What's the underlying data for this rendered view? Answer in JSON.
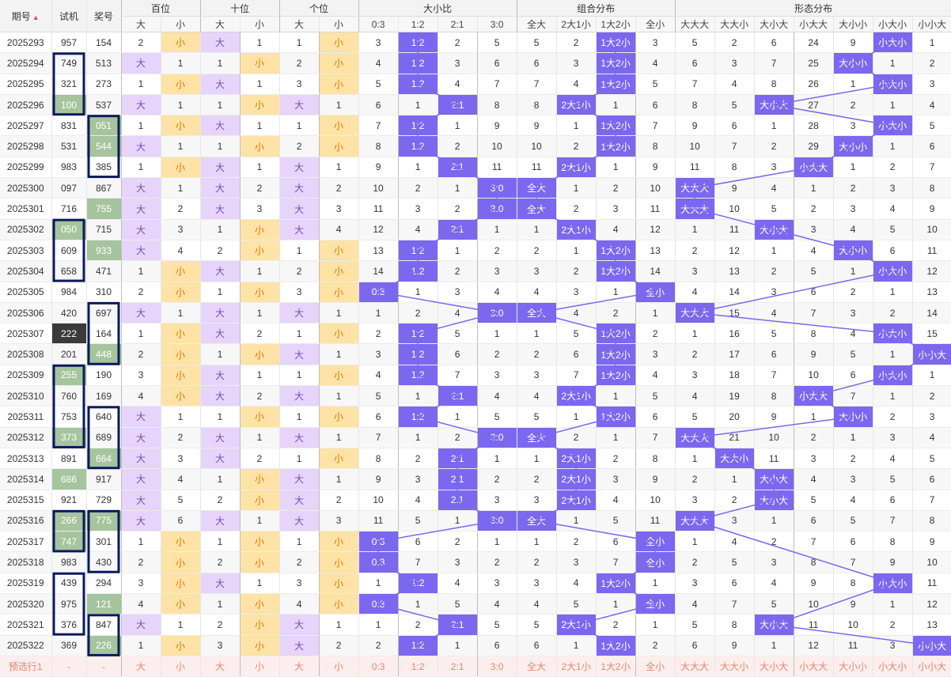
{
  "header": {
    "issue_label": "期号",
    "sort_icon": "sort-icon",
    "sj_label": "试机",
    "jh_label": "奖号",
    "groups": [
      {
        "label": "百位",
        "cols": [
          "大",
          "小"
        ]
      },
      {
        "label": "十位",
        "cols": [
          "大",
          "小"
        ]
      },
      {
        "label": "个位",
        "cols": [
          "大",
          "小"
        ]
      },
      {
        "label": "大小比",
        "cols": [
          "0:3",
          "1:2",
          "2:1",
          "3:0"
        ]
      },
      {
        "label": "组合分布",
        "cols": [
          "全大",
          "2大1小",
          "1大2小",
          "全小"
        ]
      },
      {
        "label": "形态分布",
        "cols": [
          "大大大",
          "大大小",
          "大小大",
          "小大大",
          "大小小",
          "小大小",
          "小小大"
        ]
      }
    ]
  },
  "rows": [
    {
      "issue": "2025293",
      "sj": "957",
      "jh": "154",
      "d": [
        "2",
        "小",
        "大",
        "1",
        "1",
        "小",
        "3",
        "1:2",
        "2",
        "5",
        "5",
        "2",
        "1大2小",
        "3",
        "5",
        "2",
        "6",
        "24",
        "9",
        "小大小",
        "1"
      ]
    },
    {
      "issue": "2025294",
      "sj": "749",
      "jh": "513",
      "d": [
        "大",
        "1",
        "1",
        "小",
        "2",
        "小",
        "4",
        "1:2",
        "3",
        "6",
        "6",
        "3",
        "1大2小",
        "4",
        "6",
        "3",
        "7",
        "25",
        "大小小",
        "1",
        "2"
      ]
    },
    {
      "issue": "2025295",
      "sj": "321",
      "jh": "273",
      "d": [
        "1",
        "小",
        "大",
        "1",
        "3",
        "小",
        "5",
        "1:2",
        "4",
        "7",
        "7",
        "4",
        "1大2小",
        "5",
        "7",
        "4",
        "8",
        "26",
        "1",
        "小大小",
        "3"
      ]
    },
    {
      "issue": "2025296",
      "sj": "100",
      "jh": "537",
      "d": [
        "大",
        "1",
        "1",
        "小",
        "大",
        "1",
        "6",
        "1",
        "2:1",
        "8",
        "8",
        "2大1小",
        "1",
        "6",
        "8",
        "5",
        "大小大",
        "27",
        "2",
        "1",
        "4"
      ]
    },
    {
      "issue": "2025297",
      "sj": "831",
      "jh": "051",
      "d": [
        "1",
        "小",
        "大",
        "1",
        "1",
        "小",
        "7",
        "1:2",
        "1",
        "9",
        "9",
        "1",
        "1大2小",
        "7",
        "9",
        "6",
        "1",
        "28",
        "3",
        "小大小",
        "5"
      ]
    },
    {
      "issue": "2025298",
      "sj": "531",
      "jh": "544",
      "d": [
        "大",
        "1",
        "1",
        "小",
        "2",
        "小",
        "8",
        "1:2",
        "2",
        "10",
        "10",
        "2",
        "1大2小",
        "8",
        "10",
        "7",
        "2",
        "29",
        "大小小",
        "1",
        "6"
      ]
    },
    {
      "issue": "2025299",
      "sj": "983",
      "jh": "385",
      "d": [
        "1",
        "小",
        "大",
        "1",
        "大",
        "1",
        "9",
        "1",
        "2:1",
        "11",
        "11",
        "2大1小",
        "1",
        "9",
        "11",
        "8",
        "3",
        "小大大",
        "1",
        "2",
        "7"
      ]
    },
    {
      "issue": "2025300",
      "sj": "097",
      "jh": "867",
      "d": [
        "大",
        "1",
        "大",
        "2",
        "大",
        "2",
        "10",
        "2",
        "1",
        "3:0",
        "全大",
        "1",
        "2",
        "10",
        "大大大",
        "9",
        "4",
        "1",
        "2",
        "3",
        "8"
      ]
    },
    {
      "issue": "2025301",
      "sj": "716",
      "jh": "755",
      "d": [
        "大",
        "2",
        "大",
        "3",
        "大",
        "3",
        "11",
        "3",
        "2",
        "3:0",
        "全大",
        "2",
        "3",
        "11",
        "大大大",
        "10",
        "5",
        "2",
        "3",
        "4",
        "9"
      ]
    },
    {
      "issue": "2025302",
      "sj": "050",
      "jh": "715",
      "d": [
        "大",
        "3",
        "1",
        "小",
        "大",
        "4",
        "12",
        "4",
        "2:1",
        "1",
        "1",
        "2大1小",
        "4",
        "12",
        "1",
        "11",
        "大小大",
        "3",
        "4",
        "5",
        "10"
      ]
    },
    {
      "issue": "2025303",
      "sj": "609",
      "jh": "933",
      "d": [
        "大",
        "4",
        "2",
        "小",
        "1",
        "小",
        "13",
        "1:2",
        "1",
        "2",
        "2",
        "1",
        "1大2小",
        "13",
        "2",
        "12",
        "1",
        "4",
        "大小小",
        "6",
        "11"
      ]
    },
    {
      "issue": "2025304",
      "sj": "658",
      "jh": "471",
      "d": [
        "1",
        "小",
        "大",
        "1",
        "2",
        "小",
        "14",
        "1:2",
        "2",
        "3",
        "3",
        "2",
        "1大2小",
        "14",
        "3",
        "13",
        "2",
        "5",
        "1",
        "小大小",
        "12"
      ]
    },
    {
      "issue": "2025305",
      "sj": "984",
      "jh": "310",
      "d": [
        "2",
        "小",
        "1",
        "小",
        "3",
        "小",
        "0:3",
        "1",
        "3",
        "4",
        "4",
        "3",
        "1",
        "全小",
        "4",
        "14",
        "3",
        "6",
        "2",
        "1",
        "13"
      ]
    },
    {
      "issue": "2025306",
      "sj": "420",
      "jh": "697",
      "d": [
        "大",
        "1",
        "大",
        "1",
        "大",
        "1",
        "1",
        "2",
        "4",
        "3:0",
        "全大",
        "4",
        "2",
        "1",
        "大大大",
        "15",
        "4",
        "7",
        "3",
        "2",
        "14"
      ]
    },
    {
      "issue": "2025307",
      "sj": "222",
      "jh": "164",
      "d": [
        "1",
        "小",
        "大",
        "2",
        "1",
        "小",
        "2",
        "1:2",
        "5",
        "1",
        "1",
        "5",
        "1大2小",
        "2",
        "1",
        "16",
        "5",
        "8",
        "4",
        "小大小",
        "15"
      ]
    },
    {
      "issue": "2025308",
      "sj": "201",
      "jh": "448",
      "d": [
        "2",
        "小",
        "1",
        "小",
        "大",
        "1",
        "3",
        "1:2",
        "6",
        "2",
        "2",
        "6",
        "1大2小",
        "3",
        "2",
        "17",
        "6",
        "9",
        "5",
        "1",
        "小小大"
      ]
    },
    {
      "issue": "2025309",
      "sj": "255",
      "jh": "190",
      "d": [
        "3",
        "小",
        "大",
        "1",
        "1",
        "小",
        "4",
        "1:2",
        "7",
        "3",
        "3",
        "7",
        "1大2小",
        "4",
        "3",
        "18",
        "7",
        "10",
        "6",
        "小大小",
        "1"
      ]
    },
    {
      "issue": "2025310",
      "sj": "760",
      "jh": "169",
      "d": [
        "4",
        "小",
        "大",
        "2",
        "大",
        "1",
        "5",
        "1",
        "2:1",
        "4",
        "4",
        "2大1小",
        "1",
        "5",
        "4",
        "19",
        "8",
        "小大大",
        "7",
        "1",
        "2"
      ]
    },
    {
      "issue": "2025311",
      "sj": "753",
      "jh": "640",
      "d": [
        "大",
        "1",
        "1",
        "小",
        "1",
        "小",
        "6",
        "1:2",
        "1",
        "5",
        "5",
        "1",
        "1大2小",
        "6",
        "5",
        "20",
        "9",
        "1",
        "大小小",
        "2",
        "3"
      ]
    },
    {
      "issue": "2025312",
      "sj": "373",
      "jh": "689",
      "d": [
        "大",
        "2",
        "大",
        "1",
        "大",
        "1",
        "7",
        "1",
        "2",
        "3:0",
        "全大",
        "2",
        "1",
        "7",
        "大大大",
        "21",
        "10",
        "2",
        "1",
        "3",
        "4"
      ]
    },
    {
      "issue": "2025313",
      "sj": "891",
      "jh": "664",
      "d": [
        "大",
        "3",
        "大",
        "2",
        "1",
        "小",
        "8",
        "2",
        "2:1",
        "1",
        "1",
        "2大1小",
        "2",
        "8",
        "1",
        "大大小",
        "11",
        "3",
        "2",
        "4",
        "5"
      ]
    },
    {
      "issue": "2025314",
      "sj": "686",
      "jh": "917",
      "d": [
        "大",
        "4",
        "1",
        "小",
        "大",
        "1",
        "9",
        "3",
        "2:1",
        "2",
        "2",
        "2大1小",
        "3",
        "9",
        "2",
        "1",
        "大小大",
        "4",
        "3",
        "5",
        "6"
      ]
    },
    {
      "issue": "2025315",
      "sj": "921",
      "jh": "729",
      "d": [
        "大",
        "5",
        "2",
        "小",
        "大",
        "2",
        "10",
        "4",
        "2:1",
        "3",
        "3",
        "2大1小",
        "4",
        "10",
        "3",
        "2",
        "大小大",
        "5",
        "4",
        "6",
        "7"
      ]
    },
    {
      "issue": "2025316",
      "sj": "266",
      "jh": "775",
      "d": [
        "大",
        "6",
        "大",
        "1",
        "大",
        "3",
        "11",
        "5",
        "1",
        "3:0",
        "全大",
        "1",
        "5",
        "11",
        "大大大",
        "3",
        "1",
        "6",
        "5",
        "7",
        "8"
      ]
    },
    {
      "issue": "2025317",
      "sj": "747",
      "jh": "301",
      "d": [
        "1",
        "小",
        "1",
        "小",
        "1",
        "小",
        "0:3",
        "6",
        "2",
        "1",
        "1",
        "2",
        "6",
        "全小",
        "1",
        "4",
        "2",
        "7",
        "6",
        "8",
        "9"
      ]
    },
    {
      "issue": "2025318",
      "sj": "983",
      "jh": "430",
      "d": [
        "2",
        "小",
        "2",
        "小",
        "2",
        "小",
        "0:3",
        "7",
        "3",
        "2",
        "2",
        "3",
        "7",
        "全小",
        "2",
        "5",
        "3",
        "8",
        "7",
        "9",
        "10"
      ]
    },
    {
      "issue": "2025319",
      "sj": "439",
      "jh": "294",
      "d": [
        "3",
        "小",
        "大",
        "1",
        "3",
        "小",
        "1",
        "1:2",
        "4",
        "3",
        "3",
        "4",
        "1大2小",
        "1",
        "3",
        "6",
        "4",
        "9",
        "8",
        "小大小",
        "11"
      ]
    },
    {
      "issue": "2025320",
      "sj": "975",
      "jh": "121",
      "d": [
        "4",
        "小",
        "1",
        "小",
        "4",
        "小",
        "0:3",
        "1",
        "5",
        "4",
        "4",
        "5",
        "1",
        "全小",
        "4",
        "7",
        "5",
        "10",
        "9",
        "1",
        "12"
      ]
    },
    {
      "issue": "2025321",
      "sj": "376",
      "jh": "847",
      "d": [
        "大",
        "1",
        "2",
        "小",
        "大",
        "1",
        "1",
        "2",
        "2:1",
        "5",
        "5",
        "2大1小",
        "2",
        "1",
        "5",
        "8",
        "大小大",
        "11",
        "10",
        "2",
        "13"
      ]
    },
    {
      "issue": "2025322",
      "sj": "369",
      "jh": "226",
      "d": [
        "1",
        "小",
        "3",
        "小",
        "大",
        "2",
        "2",
        "1:2",
        "1",
        "6",
        "6",
        "1",
        "1大2小",
        "2",
        "6",
        "9",
        "1",
        "12",
        "11",
        "3",
        "小小大"
      ]
    }
  ],
  "footer": {
    "label": "预选行1",
    "sj": "-",
    "jh": "-",
    "cells": [
      "大",
      "小",
      "大",
      "小",
      "大",
      "小",
      "0:3",
      "1:2",
      "2:1",
      "3:0",
      "全大",
      "2大1小",
      "1大2小",
      "全小",
      "大大大",
      "大大小",
      "大小大",
      "小大大",
      "大小小",
      "小大小",
      "小小大"
    ]
  },
  "colors": {
    "big_bg": "#e6d4fa",
    "small_bg": "#ffe2a6",
    "hit_bg": "#7b68ee",
    "green_bg": "#a6c49d",
    "box_border": "#0b1a5c",
    "line": "#7b68ee"
  }
}
